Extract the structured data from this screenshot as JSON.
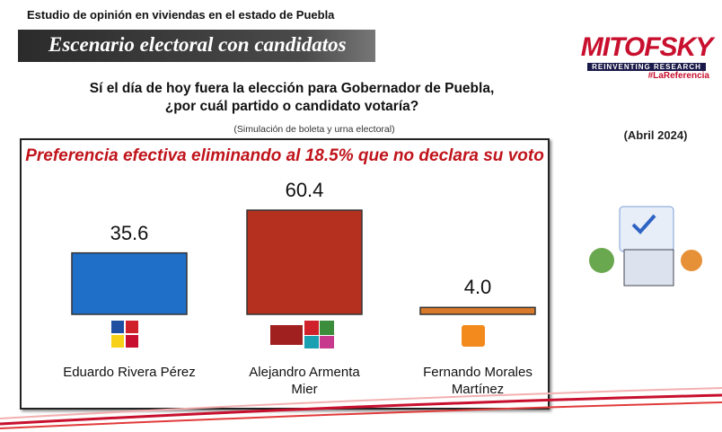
{
  "header": {
    "study": "Estudio de opinión en viviendas en el estado de Puebla",
    "banner": "Escenario electoral con candidatos",
    "question": [
      "Sí el día de hoy fuera la elección para Gobernador de Puebla,",
      "¿por cuál partido o candidato votaría?"
    ],
    "note": "(Simulación de boleta y urna electoral)",
    "logo": {
      "name": "MITOFSKY",
      "tagline": "REINVENTING RESEARCH",
      "hashtag": "#LaReferencia"
    },
    "date": "(Abril 2024)"
  },
  "chart_data": {
    "type": "bar",
    "title": "Preferencia efectiva eliminando al 18.5% que no declara su voto",
    "categories": [
      "Eduardo Rivera Pérez",
      "Alejandro Armenta Mier",
      "Fernando Morales Martínez"
    ],
    "values": [
      35.6,
      60.4,
      4.0
    ],
    "value_labels": [
      "35.6",
      "60.4",
      "4.0"
    ],
    "colors": [
      "#1f6fc9",
      "#b5301f",
      "#d97a2b"
    ]
  }
}
